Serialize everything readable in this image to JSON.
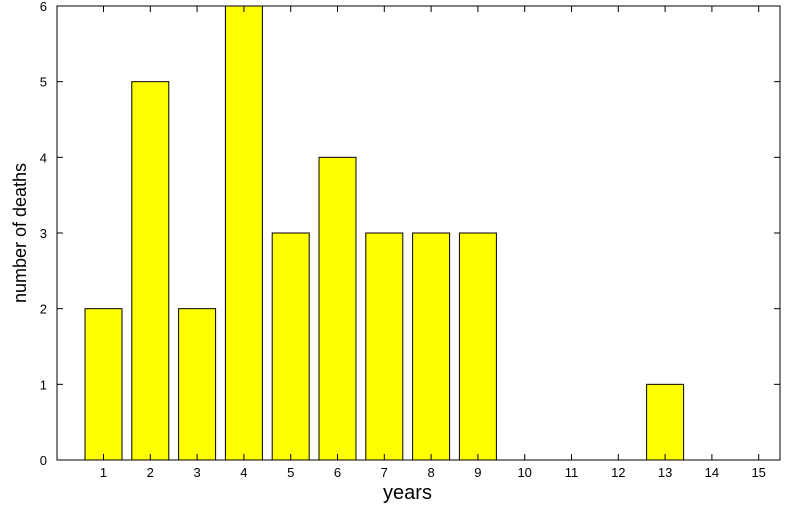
{
  "chart_data": {
    "type": "bar",
    "categories": [
      "1",
      "2",
      "3",
      "4",
      "5",
      "6",
      "7",
      "8",
      "9",
      "10",
      "11",
      "12",
      "13",
      "14",
      "15"
    ],
    "values": [
      2,
      5,
      2,
      6,
      3,
      4,
      3,
      3,
      3,
      0,
      0,
      0,
      1,
      0,
      0
    ],
    "title": "",
    "xlabel": "years",
    "ylabel": "number of deaths",
    "ylim": [
      0,
      6
    ],
    "yticks": [
      0,
      1,
      2,
      3,
      4,
      5,
      6
    ],
    "grid": false,
    "legend": "none",
    "bar_color": "#ffff00",
    "edge_color": "#000000"
  }
}
